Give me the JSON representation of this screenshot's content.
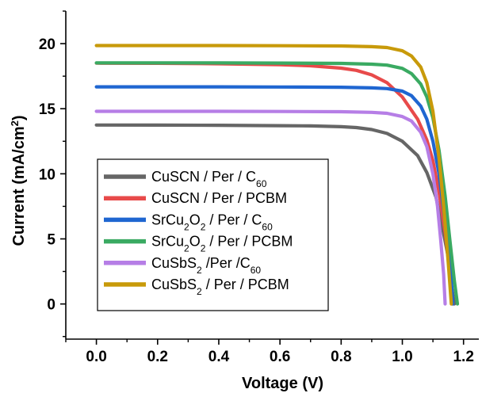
{
  "chart_data": {
    "type": "line",
    "xlabel": "Voltage (V)",
    "ylabel": {
      "main": "Current (mA/cm",
      "sup": "2",
      "tail": ")"
    },
    "xlim": [
      -0.1,
      1.25
    ],
    "ylim": [
      -2.7,
      22.5
    ],
    "xticks": [
      0.0,
      0.2,
      0.4,
      0.6,
      0.8,
      1.0,
      1.2
    ],
    "xtick_labels": [
      "0.0",
      "0.2",
      "0.4",
      "0.6",
      "0.8",
      "1.0",
      "1.2"
    ],
    "yticks": [
      0,
      5,
      10,
      15,
      20
    ],
    "ytick_labels": [
      "0",
      "5",
      "10",
      "15",
      "20"
    ],
    "grid": false,
    "legend_position": "bottom-left",
    "series": [
      {
        "name": "CuSCN / Per / C60",
        "label_parts": [
          [
            "CuSCN / Per / C",
            ""
          ],
          [
            "60",
            "sub"
          ]
        ],
        "color": "#666666",
        "x": [
          0.0,
          0.2,
          0.4,
          0.6,
          0.7,
          0.8,
          0.85,
          0.9,
          0.95,
          1.0,
          1.05,
          1.08,
          1.11,
          1.13,
          1.15,
          1.16,
          1.17
        ],
        "y": [
          13.75,
          13.74,
          13.73,
          13.7,
          13.68,
          13.62,
          13.55,
          13.4,
          13.1,
          12.5,
          11.4,
          10.1,
          8.2,
          6.0,
          3.6,
          1.5,
          0.0
        ]
      },
      {
        "name": "CuSCN / Per / PCBM",
        "label_parts": [
          [
            "CuSCN / Per / PCBM",
            ""
          ]
        ],
        "color": "#e84a4a",
        "x": [
          0.0,
          0.2,
          0.4,
          0.6,
          0.7,
          0.8,
          0.85,
          0.9,
          0.95,
          1.0,
          1.05,
          1.08,
          1.1,
          1.12,
          1.14,
          1.155,
          1.165
        ],
        "y": [
          18.5,
          18.49,
          18.45,
          18.38,
          18.3,
          18.12,
          17.95,
          17.6,
          17.0,
          15.9,
          14.2,
          12.6,
          11.0,
          8.6,
          5.5,
          2.5,
          0.0
        ]
      },
      {
        "name": "SrCu2O2 / Per / C60",
        "label_parts": [
          [
            "SrCu",
            ""
          ],
          [
            "2",
            "sub"
          ],
          [
            "O",
            ""
          ],
          [
            "2",
            "sub"
          ],
          [
            " / Per / C",
            ""
          ],
          [
            "60",
            "sub"
          ]
        ],
        "color": "#1f66d1",
        "x": [
          0.0,
          0.2,
          0.4,
          0.6,
          0.8,
          0.9,
          0.95,
          1.0,
          1.03,
          1.06,
          1.08,
          1.1,
          1.12,
          1.135,
          1.15,
          1.16,
          1.165
        ],
        "y": [
          16.68,
          16.68,
          16.68,
          16.67,
          16.65,
          16.6,
          16.55,
          16.35,
          16.0,
          15.2,
          14.2,
          12.5,
          10.0,
          7.2,
          4.0,
          1.8,
          0.0
        ]
      },
      {
        "name": "SrCu2O2 / Per / PCBM",
        "label_parts": [
          [
            "SrCu",
            ""
          ],
          [
            "2",
            "sub"
          ],
          [
            "O",
            ""
          ],
          [
            "2",
            "sub"
          ],
          [
            " / Per / PCBM",
            ""
          ]
        ],
        "color": "#3aaa62",
        "x": [
          0.0,
          0.2,
          0.4,
          0.6,
          0.8,
          0.9,
          0.95,
          1.0,
          1.03,
          1.06,
          1.08,
          1.1,
          1.12,
          1.14,
          1.155,
          1.17,
          1.18
        ],
        "y": [
          18.52,
          18.52,
          18.52,
          18.51,
          18.48,
          18.42,
          18.35,
          18.1,
          17.7,
          16.9,
          15.9,
          14.3,
          11.8,
          8.3,
          5.0,
          1.8,
          0.0
        ]
      },
      {
        "name": "CuSbS2 /Per /C60",
        "label_parts": [
          [
            "CuSbS",
            ""
          ],
          [
            "2",
            "sub"
          ],
          [
            " /Per /C",
            ""
          ],
          [
            "60",
            "sub"
          ]
        ],
        "color": "#b67ee6",
        "x": [
          0.0,
          0.2,
          0.4,
          0.6,
          0.8,
          0.9,
          0.95,
          1.0,
          1.03,
          1.06,
          1.08,
          1.1,
          1.115,
          1.125,
          1.135,
          1.14
        ],
        "y": [
          14.8,
          14.8,
          14.8,
          14.79,
          14.77,
          14.72,
          14.65,
          14.4,
          14.05,
          13.2,
          12.1,
          10.0,
          7.5,
          5.0,
          2.3,
          0.0
        ]
      },
      {
        "name": "CuSbS2 / Per / PCBM",
        "label_parts": [
          [
            "CuSbS",
            ""
          ],
          [
            "2",
            "sub"
          ],
          [
            " / Per / PCBM",
            ""
          ]
        ],
        "color": "#c89a0a",
        "x": [
          0.0,
          0.2,
          0.4,
          0.6,
          0.8,
          0.9,
          0.95,
          1.0,
          1.03,
          1.06,
          1.08,
          1.1,
          1.12,
          1.135,
          1.15,
          1.16
        ],
        "y": [
          19.85,
          19.85,
          19.85,
          19.84,
          19.82,
          19.77,
          19.7,
          19.45,
          19.05,
          18.2,
          17.0,
          14.8,
          11.2,
          7.5,
          3.2,
          0.0
        ]
      }
    ]
  }
}
